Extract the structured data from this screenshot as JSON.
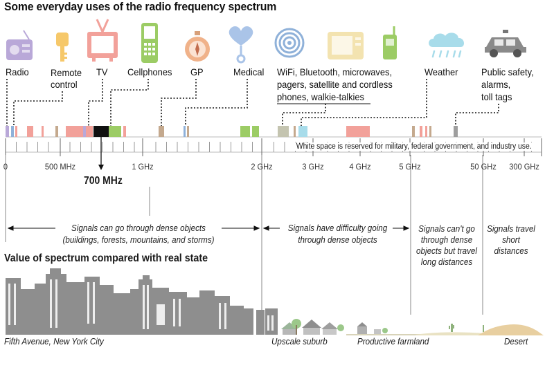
{
  "title": "Some everyday uses of the radio frequency spectrum",
  "uses": [
    {
      "label": "Radio",
      "icon": "radio-icon"
    },
    {
      "label": "Remote control",
      "icon": "key-fob-icon"
    },
    {
      "label": "TV",
      "icon": "tv-icon"
    },
    {
      "label": "Cellphones",
      "icon": "cellphone-icon"
    },
    {
      "label": "GP",
      "icon": "compass-icon"
    },
    {
      "label": "Medical",
      "icon": "heart-monitor-icon"
    },
    {
      "label": "WiFi, Bluetooth, microwaves, pagers, satellite and cordless phones, walkie-talkies",
      "icon": "wifi-devices-icon"
    },
    {
      "label": "Weather",
      "icon": "rain-cloud-icon"
    },
    {
      "label": "Public safety, alarms, toll tags",
      "icon": "police-car-icon"
    }
  ],
  "labels": {
    "radio": "Radio",
    "remote1": "Remote",
    "remote2": "control",
    "tv": "TV",
    "cell": "Cellphones",
    "gp": "GP",
    "medical": "Medical",
    "wifi1": "WiFi, Bluetooth, microwaves,",
    "wifi2": "pagers, satellite and cordless",
    "wifi3": "phones, walkie-talkies",
    "weather": "Weather",
    "safety1": "Public safety,",
    "safety2": "alarms,",
    "safety3": "toll tags"
  },
  "axis": {
    "ticks": [
      "0",
      "500 MHz",
      "1 GHz",
      "2 GHz",
      "3 GHz",
      "4 GHz",
      "5 GHz",
      "50 GHz",
      "300 GHz"
    ],
    "highlight": "700 MHz",
    "note": "White space is reserved for military, federal government, and industry use."
  },
  "propagation": {
    "a1": "Signals can go through dense objects",
    "a2": "(buildings, forests, mountains, and storms)",
    "b1": "Signals have difficulty going",
    "b2": "through dense objects",
    "c1": "Signals can't go",
    "c2": "through dense",
    "c3": "objects but travel",
    "c4": "long distances",
    "d1": "Signals travel",
    "d2": "short",
    "d3": "distances"
  },
  "value_title": "Value of spectrum compared with real state",
  "places": {
    "fifth": "Fifth Avenue, New York City",
    "suburb": "Upscale suburb",
    "farm": "Productive farmland",
    "desert": "Desert"
  },
  "colors": {
    "pink": "#f2a19a",
    "green": "#9ccc65",
    "tan": "#c4a98e",
    "blue": "#8fb1d9",
    "cyan": "#a8dcea",
    "lavender": "#b9a8d8",
    "black": "#111111",
    "gray": "#9e9e9e",
    "city": "#8e8e8e"
  }
}
